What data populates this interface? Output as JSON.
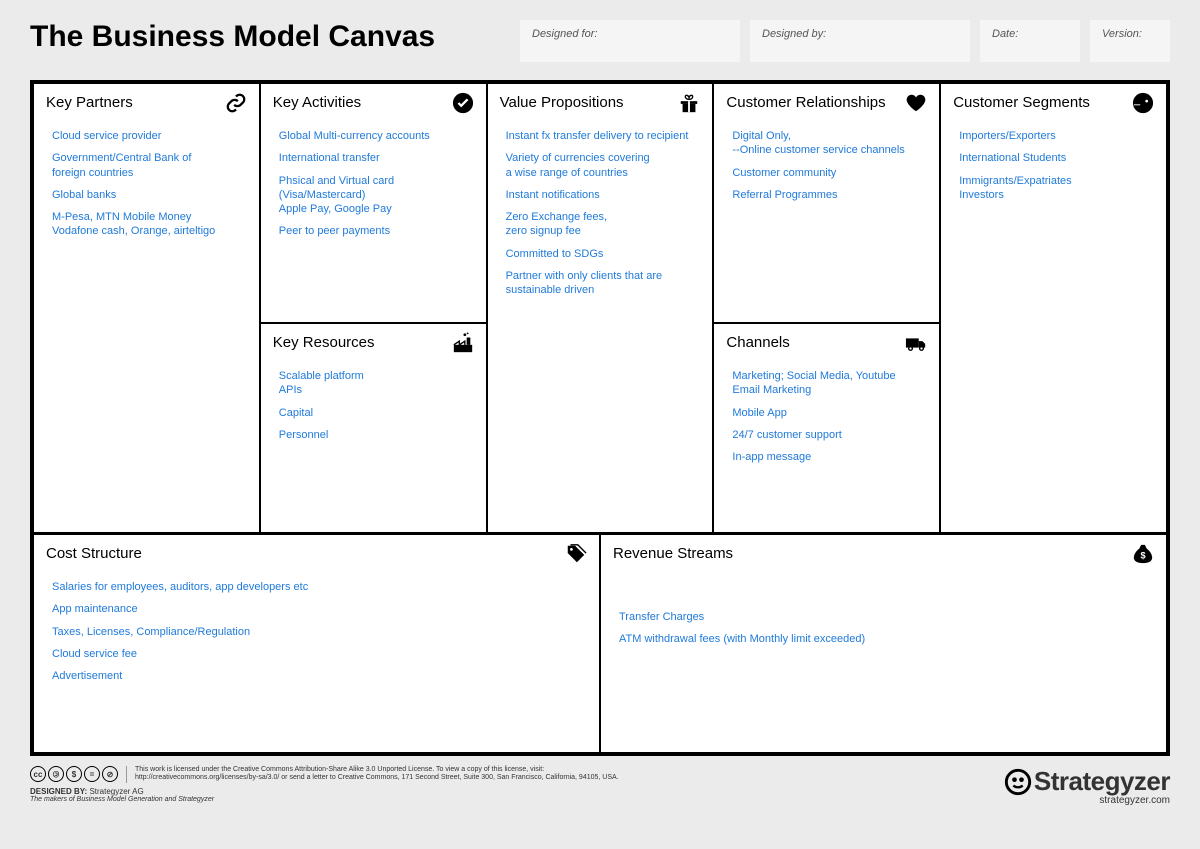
{
  "title": "The Business Model Canvas",
  "meta": {
    "designed_for_label": "Designed for:",
    "designed_by_label": "Designed by:",
    "date_label": "Date:",
    "version_label": "Version:"
  },
  "colors": {
    "item_text": "#1f7ad9",
    "page_bg": "#ebebeb",
    "canvas_bg": "#ffffff",
    "border": "#000000"
  },
  "cells": {
    "key_partners": {
      "title": "Key Partners",
      "items": [
        "Cloud service provider",
        "Government/Central Bank of\nforeign countries",
        "Global banks",
        "M-Pesa, MTN Mobile Money\nVodafone cash, Orange, airteltigo"
      ]
    },
    "key_activities": {
      "title": "Key Activities",
      "items": [
        "Global Multi-currency accounts",
        "International transfer",
        "Phsical and Virtual card\n(Visa/Mastercard)\nApple Pay, Google Pay",
        "Peer to peer payments"
      ]
    },
    "key_resources": {
      "title": "Key Resources",
      "items": [
        "Scalable platform\nAPIs",
        "Capital",
        "Personnel"
      ]
    },
    "value_propositions": {
      "title": "Value Propositions",
      "items": [
        "Instant fx transfer delivery to recipient",
        "Variety of currencies covering\na wise range of countries",
        "Instant notifications",
        "Zero Exchange fees,\nzero signup fee",
        "Committed to SDGs",
        "Partner with only clients that are\nsustainable driven"
      ]
    },
    "customer_relationships": {
      "title": "Customer Relationships",
      "items": [
        "Digital Only,\n--Online customer service channels",
        "Customer community",
        "Referral Programmes"
      ]
    },
    "channels": {
      "title": "Channels",
      "items": [
        "Marketing; Social Media, Youtube\nEmail Marketing",
        "Mobile App",
        "24/7 customer support",
        "In-app message"
      ]
    },
    "customer_segments": {
      "title": "Customer Segments",
      "items": [
        "Importers/Exporters",
        "International Students",
        "Immigrants/Expatriates\nInvestors"
      ]
    },
    "cost_structure": {
      "title": "Cost Structure",
      "items": [
        "Salaries for employees, auditors, app developers etc",
        "App maintenance",
        "Taxes, Licenses, Compliance/Regulation",
        "Cloud service fee",
        "Advertisement"
      ]
    },
    "revenue_streams": {
      "title": "Revenue Streams",
      "items": [
        "Transfer Charges",
        "ATM withdrawal fees (with Monthly limit exceeded)"
      ]
    }
  },
  "footer": {
    "license": "This work is licensed under the Creative Commons Attribution-Share Alike 3.0 Unported License. To view a copy of this license, visit:\nhttp://creativecommons.org/licenses/by-sa/3.0/ or send a letter to Creative Commons, 171 Second Street, Suite 300, San Francisco, California, 94105, USA.",
    "designed_by_label": "DESIGNED BY:",
    "designed_by_value": "Strategyzer AG",
    "designer_sub": "The makers of Business Model Generation and Strategyzer",
    "brand": "Strategyzer",
    "brand_url": "strategyzer.com"
  }
}
